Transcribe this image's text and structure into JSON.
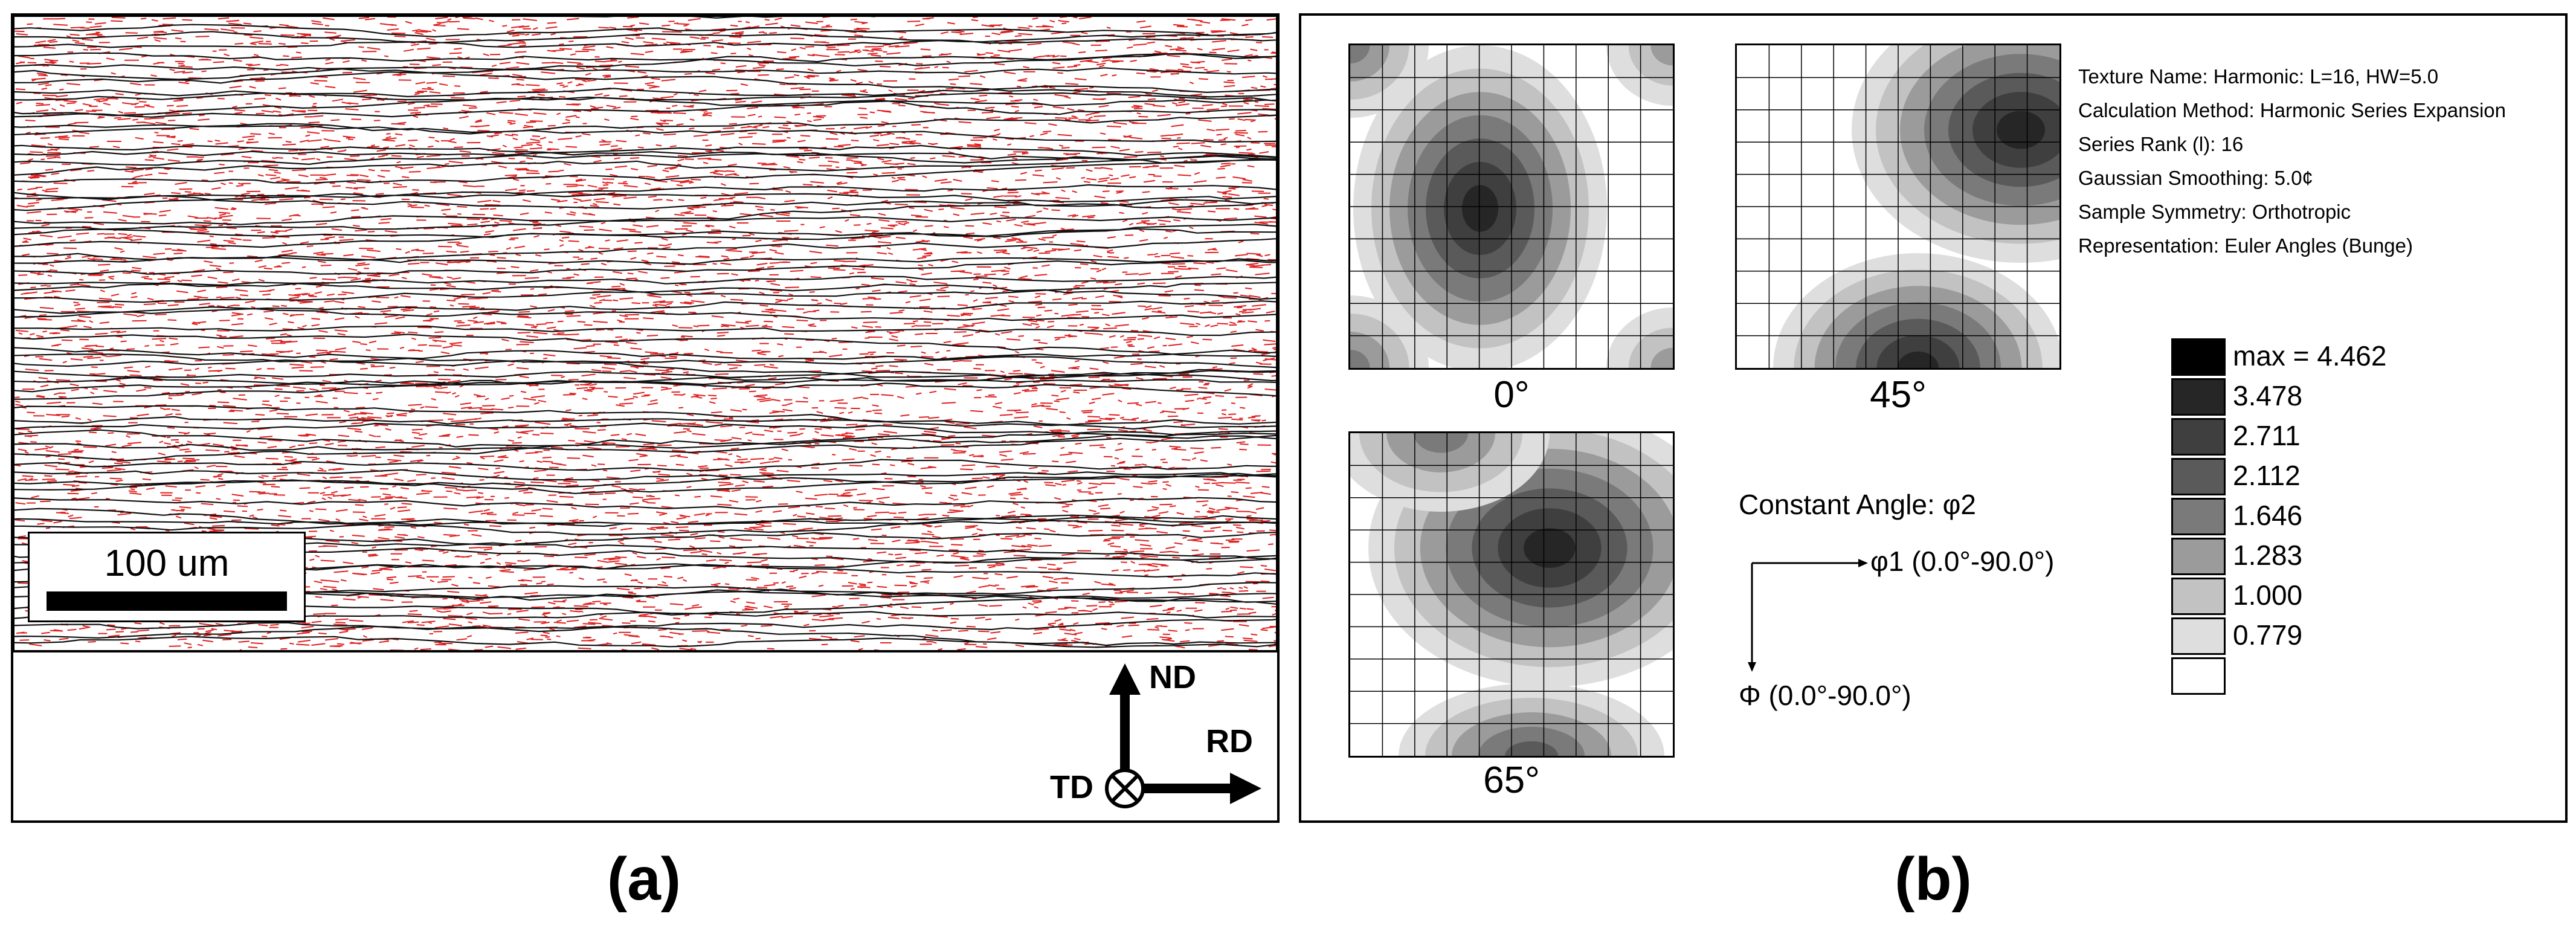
{
  "panel_a": {
    "scale_bar_label": "100 um",
    "axes": {
      "nd": "ND",
      "rd": "RD",
      "td": "TD"
    },
    "panel_label": "(a)"
  },
  "panel_b": {
    "sections": [
      {
        "label": "0°"
      },
      {
        "label": "45°"
      },
      {
        "label": "65°"
      }
    ],
    "info": [
      "Texture Name: Harmonic: L=16, HW=5.0",
      "Calculation Method: Harmonic Series Expansion",
      "Series Rank (l): 16",
      "Gaussian Smoothing: 5.0¢",
      "Sample Symmetry: Orthotropic",
      "Representation: Euler Angles (Bunge)"
    ],
    "constant_angle": "Constant Angle: φ2",
    "phi1_axis": "φ1 (0.0°-90.0°)",
    "Phi_axis": "Φ (0.0°-90.0°)",
    "legend": [
      {
        "label": "max = 4.462",
        "color": "#000000"
      },
      {
        "label": "3.478",
        "color": "#262626"
      },
      {
        "label": "2.711",
        "color": "#3f3f3f"
      },
      {
        "label": "2.112",
        "color": "#5a5a5a"
      },
      {
        "label": "1.646",
        "color": "#7a7a7a"
      },
      {
        "label": "1.283",
        "color": "#9b9b9b"
      },
      {
        "label": "1.000",
        "color": "#c2c2c2"
      },
      {
        "label": "0.779",
        "color": "#dedede"
      },
      {
        "label": "",
        "color": "#ffffff"
      }
    ],
    "panel_label": "(b)"
  }
}
